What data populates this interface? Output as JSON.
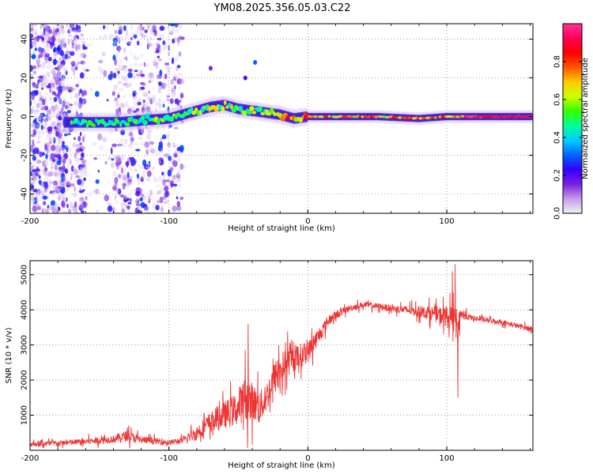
{
  "figure_title": "YM08.2025.356.05.03.C22",
  "chart_data": [
    {
      "type": "heatmap",
      "title": "YM08.2025.356.05.03.C22",
      "xlabel": "Height of straight line (km)",
      "ylabel": "Frequency (Hz)",
      "xlim": [
        -200,
        162
      ],
      "ylim": [
        -50,
        48
      ],
      "xticks": [
        -200,
        -100,
        0,
        100
      ],
      "xtick_labels": [
        "-200",
        "-100",
        "0",
        "100"
      ],
      "yticks": [
        -40,
        -20,
        0,
        20,
        40
      ],
      "ytick_labels": [
        "-40",
        "-20",
        "0",
        "20",
        "40"
      ],
      "grid": true,
      "colorbar": {
        "label": "Normalized spectral amplitude",
        "range": [
          0,
          1
        ],
        "ticks": [
          0.0,
          0.2,
          0.4,
          0.6,
          0.8
        ],
        "tick_labels": [
          "0.0",
          "0.2",
          "0.4",
          "0.6",
          "0.8"
        ],
        "colors": [
          "#f2f2f2",
          "#c49bea",
          "#7a1fe0",
          "#3300ff",
          "#0066ff",
          "#00ccff",
          "#00ff99",
          "#33ff00",
          "#ccff00",
          "#ffcc00",
          "#ff5500",
          "#ff0000",
          "#ff0055",
          "#ff3399"
        ]
      },
      "ridge": [
        {
          "x": -170,
          "y": -3
        },
        {
          "x": -150,
          "y": -3
        },
        {
          "x": -135,
          "y": -3
        },
        {
          "x": -120,
          "y": -2
        },
        {
          "x": -100,
          "y": -1
        },
        {
          "x": -90,
          "y": 1
        },
        {
          "x": -80,
          "y": 3
        },
        {
          "x": -70,
          "y": 5
        },
        {
          "x": -60,
          "y": 6
        },
        {
          "x": -50,
          "y": 4
        },
        {
          "x": -40,
          "y": 3
        },
        {
          "x": -30,
          "y": 2
        },
        {
          "x": -20,
          "y": 1
        },
        {
          "x": -10,
          "y": -1
        },
        {
          "x": 0,
          "y": 0
        },
        {
          "x": 20,
          "y": 0
        },
        {
          "x": 50,
          "y": 0
        },
        {
          "x": 80,
          "y": -1
        },
        {
          "x": 100,
          "y": 0
        },
        {
          "x": 130,
          "y": 0
        },
        {
          "x": 162,
          "y": 0
        }
      ],
      "scatter_region": {
        "xmin": -200,
        "xmax": -90,
        "ymin": -50,
        "ymax": 48
      },
      "annotations": [
        {
          "x": -38,
          "y": 28,
          "value": 0.3
        },
        {
          "x": -45,
          "y": 20,
          "value": 0.2
        },
        {
          "x": -70,
          "y": 25,
          "value": 0.15
        }
      ]
    },
    {
      "type": "line",
      "title": "",
      "xlabel": "Height of straight line (km)",
      "ylabel": "SNR (10 * v/v)",
      "xlim": [
        -200,
        162
      ],
      "ylim": [
        0,
        5400
      ],
      "xticks": [
        -200,
        -100,
        0,
        100
      ],
      "xtick_labels": [
        "-200",
        "-100",
        "0",
        "100"
      ],
      "yticks": [
        1000,
        2000,
        3000,
        4000,
        5000
      ],
      "ytick_labels": [
        "1000",
        "2000",
        "3000",
        "4000",
        "5000"
      ],
      "grid": true,
      "series": [
        {
          "name": "SNR",
          "color": "#ee3333",
          "x": [
            -200,
            -180,
            -160,
            -140,
            -130,
            -120,
            -100,
            -90,
            -80,
            -70,
            -60,
            -50,
            -45,
            -40,
            -35,
            -30,
            -25,
            -20,
            -15,
            -10,
            -5,
            0,
            5,
            10,
            15,
            20,
            30,
            40,
            50,
            60,
            70,
            80,
            90,
            95,
            100,
            105,
            108,
            110,
            115,
            120,
            130,
            140,
            150,
            162
          ],
          "y": [
            180,
            200,
            250,
            320,
            420,
            300,
            220,
            280,
            500,
            800,
            1000,
            1200,
            1500,
            1400,
            1200,
            1500,
            2000,
            2300,
            2500,
            2600,
            2700,
            2800,
            3100,
            3400,
            3700,
            3850,
            4050,
            4150,
            4100,
            4050,
            4000,
            3950,
            3900,
            3850,
            3800,
            3700,
            3600,
            3900,
            3800,
            3750,
            3700,
            3650,
            3550,
            3450
          ],
          "noise": [
            120,
            130,
            150,
            180,
            260,
            180,
            130,
            150,
            350,
            500,
            650,
            800,
            1100,
            900,
            800,
            700,
            800,
            800,
            700,
            600,
            600,
            500,
            450,
            350,
            250,
            200,
            150,
            150,
            150,
            160,
            200,
            250,
            350,
            400,
            500,
            600,
            700,
            300,
            150,
            130,
            120,
            120,
            120,
            130
          ],
          "spikes": [
            {
              "x": -43,
              "y": 3600
            },
            {
              "x": -36,
              "y": 2250
            },
            {
              "x": 104,
              "y": 5100
            },
            {
              "x": 106,
              "y": 5300
            },
            {
              "x": 108,
              "y": 1500
            }
          ]
        }
      ]
    }
  ]
}
